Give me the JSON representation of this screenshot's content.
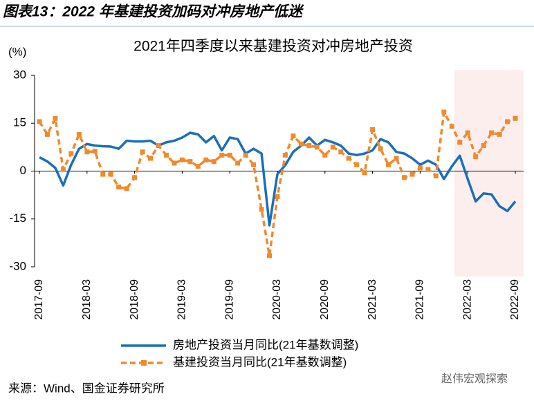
{
  "header": {
    "title": "图表13：2022 年基建投资加码对冲房地产低迷"
  },
  "chart_data": {
    "type": "line",
    "title": "2021年四季度以来基建投资对冲房地产投资",
    "y_label": "(%)",
    "categories": [
      "2017-09",
      null,
      null,
      null,
      null,
      null,
      "2018-03",
      null,
      null,
      null,
      null,
      null,
      "2018-09",
      null,
      null,
      null,
      null,
      null,
      "2019-03",
      null,
      null,
      null,
      null,
      null,
      "2019-09",
      null,
      null,
      null,
      null,
      null,
      "2020-03",
      null,
      null,
      null,
      null,
      null,
      "2020-09",
      null,
      null,
      null,
      null,
      null,
      "2021-03",
      null,
      null,
      null,
      null,
      null,
      "2021-09",
      null,
      null,
      null,
      null,
      null,
      "2022-03",
      null,
      null,
      null,
      null,
      null,
      "2022-09"
    ],
    "series": [
      {
        "name": "房地产投资当月同比(21年基数调整)",
        "color": "#1a6fba",
        "dashed": false,
        "markers": false,
        "values": [
          4.3,
          3.0,
          1.0,
          -4.5,
          2.0,
          7.0,
          8.5,
          8.0,
          7.8,
          7.7,
          7.0,
          9.5,
          9.3,
          9.3,
          9.5,
          8.0,
          9.0,
          9.5,
          10.5,
          12.0,
          11.5,
          9.0,
          11.0,
          6.5,
          10.5,
          10.0,
          5.5,
          7.0,
          5.5,
          -17.0,
          -1.0,
          1.9,
          6.0,
          8.0,
          10.5,
          8.0,
          9.8,
          9.0,
          8.0,
          5.5,
          5.0,
          5.5,
          6.5,
          10.0,
          9.0,
          6.0,
          5.5,
          4.0,
          2.0,
          3.3,
          2.0,
          -2.5,
          1.5,
          4.8,
          -2.5,
          -9.5,
          -7.0,
          -7.3,
          -11.0,
          -12.5,
          -9.5
        ]
      },
      {
        "name": "基建投资当月同比(21年基数调整)",
        "color": "#f08a2c",
        "dashed": true,
        "markers": true,
        "values": [
          15.5,
          11.5,
          16.5,
          0.5,
          5.5,
          11.5,
          6.0,
          6.2,
          -1.0,
          -1.0,
          -5.0,
          -5.5,
          -2.0,
          6.0,
          4.0,
          8.0,
          5.0,
          2.5,
          3.5,
          3.0,
          1.5,
          3.5,
          3.0,
          5.0,
          5.0,
          2.5,
          5.0,
          2.0,
          -12.0,
          -26.5,
          -8.0,
          5.0,
          11.0,
          8.5,
          8.0,
          7.5,
          5.0,
          7.5,
          6.0,
          4.0,
          2.0,
          -0.5,
          13.0,
          7.0,
          2.0,
          4.0,
          -2.0,
          -1.0,
          1.0,
          0.5,
          -1.5,
          18.5,
          14.0,
          9.0,
          12.0,
          4.5,
          8.0,
          12.0,
          11.5,
          15.5,
          16.5
        ]
      }
    ],
    "ylim": [
      -30,
      30
    ],
    "yticks": [
      30,
      15,
      0,
      -15,
      -30
    ]
  },
  "source": "来源：Wind、国金证券研究所",
  "watermark": "赵伟宏观探索"
}
